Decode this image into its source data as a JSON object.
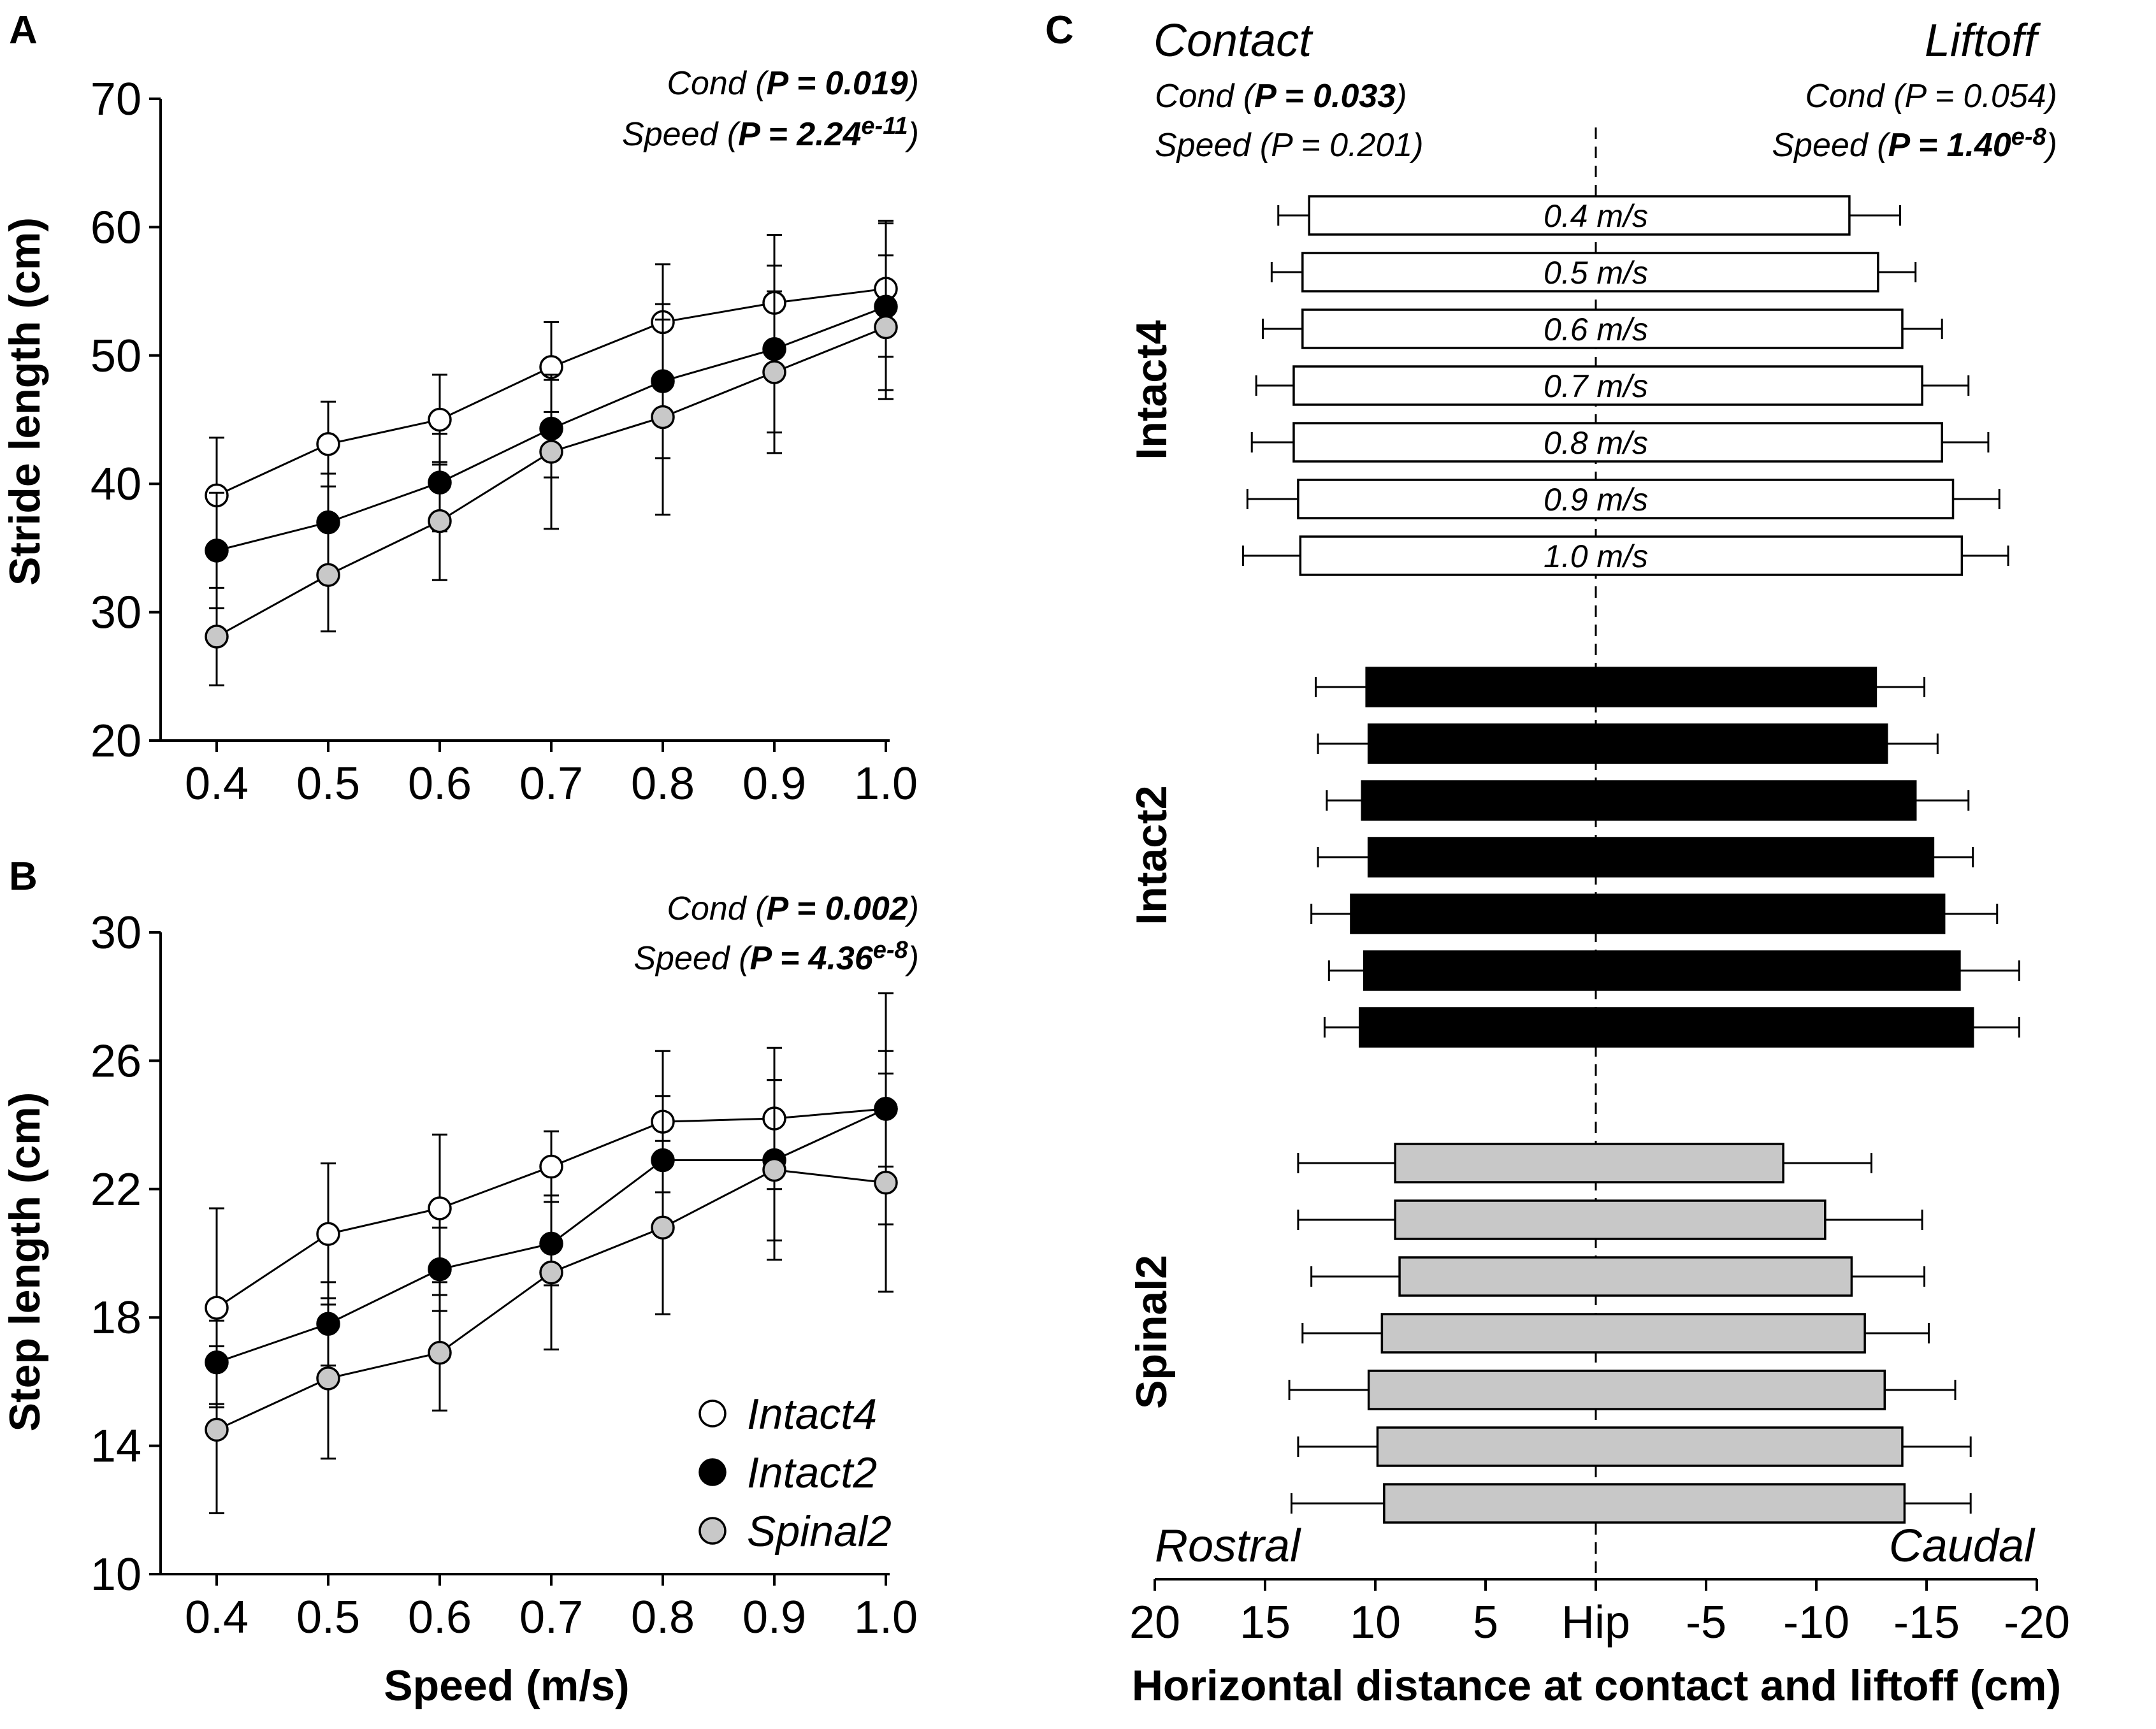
{
  "colors": {
    "Intact4": "#ffffff",
    "Intact2": "#000000",
    "Spinal2": "#c8c8c8",
    "stroke": "#000000"
  },
  "chart_data": [
    {
      "id": "A",
      "panel_label": "A",
      "type": "line",
      "ylabel": "Stride length (cm)",
      "xlabel": "",
      "ylim": [
        20,
        70
      ],
      "yticks": [
        20,
        30,
        40,
        50,
        60,
        70
      ],
      "categories": [
        "0.4",
        "0.5",
        "0.6",
        "0.7",
        "0.8",
        "0.9",
        "1.0"
      ],
      "stats": [
        {
          "name": "Cond",
          "p_text": "P = 0.019",
          "sup": "",
          "bold": true
        },
        {
          "name": "Speed",
          "p_text": "P = 2.24",
          "sup": "e-11",
          "bold": true
        }
      ],
      "series": [
        {
          "name": "Intact4",
          "values": [
            39.1,
            43.1,
            45.0,
            49.1,
            52.6,
            54.1,
            55.2
          ],
          "err": [
            4.5,
            3.3,
            3.5,
            3.5,
            4.5,
            5.3,
            5.3
          ]
        },
        {
          "name": "Intact2",
          "values": [
            34.8,
            37.0,
            40.1,
            44.3,
            48.0,
            50.5,
            53.8
          ],
          "err": [
            4.5,
            3.8,
            3.8,
            3.8,
            6.0,
            6.5,
            6.5
          ]
        },
        {
          "name": "Spinal2",
          "values": [
            28.1,
            32.9,
            37.1,
            42.5,
            45.2,
            48.7,
            52.2
          ],
          "err": [
            3.8,
            4.4,
            4.6,
            6.0,
            7.6,
            6.3,
            5.6
          ]
        }
      ]
    },
    {
      "id": "B",
      "panel_label": "B",
      "type": "line",
      "ylabel": "Step length (cm)",
      "xlabel": "Speed (m/s)",
      "ylim": [
        10,
        30
      ],
      "yticks": [
        10,
        14,
        18,
        22,
        26,
        30
      ],
      "categories": [
        "0.4",
        "0.5",
        "0.6",
        "0.7",
        "0.8",
        "0.9",
        "1.0"
      ],
      "stats": [
        {
          "name": "Cond",
          "p_text": "P = 0.002",
          "sup": "",
          "bold": true
        },
        {
          "name": "Speed",
          "p_text": "P = 4.36",
          "sup": "e-8",
          "bold": true
        }
      ],
      "legend": [
        "Intact4",
        "Intact2",
        "Spinal2"
      ],
      "series": [
        {
          "name": "Intact4",
          "values": [
            18.3,
            20.6,
            21.4,
            22.7,
            24.1,
            24.2,
            24.5
          ],
          "err": [
            3.1,
            2.2,
            2.3,
            1.1,
            2.2,
            2.2,
            1.8
          ]
        },
        {
          "name": "Intact2",
          "values": [
            16.6,
            17.8,
            19.5,
            20.3,
            22.9,
            22.9,
            24.5
          ],
          "err": [
            1.3,
            1.3,
            1.3,
            1.3,
            2.0,
            2.5,
            3.6
          ]
        },
        {
          "name": "Spinal2",
          "values": [
            14.5,
            16.1,
            16.9,
            19.4,
            20.8,
            22.6,
            22.2
          ],
          "err": [
            2.6,
            2.5,
            1.8,
            2.4,
            2.7,
            2.8,
            3.4
          ]
        }
      ]
    },
    {
      "id": "C",
      "panel_label": "C",
      "type": "floating-bar",
      "xlabel": "Horizontal distance at contact and liftoff (cm)",
      "xlim": [
        20,
        -20
      ],
      "xticks": [
        "20",
        "15",
        "10",
        "5",
        "Hip",
        "-5",
        "-10",
        "-15",
        "-20"
      ],
      "contact": {
        "title": "Contact",
        "stats": [
          {
            "name": "Cond",
            "p_text": "P = 0.033",
            "sup": "",
            "bold": true
          },
          {
            "name": "Speed",
            "p_text": "P = 0.201",
            "sup": "",
            "bold": false
          }
        ]
      },
      "liftoff": {
        "title": "Liftoff",
        "stats": [
          {
            "name": "Cond",
            "p_text": "P = 0.054",
            "sup": "",
            "bold": false
          },
          {
            "name": "Speed",
            "p_text": "P = 1.40",
            "sup": "e-8",
            "bold": true
          }
        ]
      },
      "rostral_label": "Rostral",
      "caudal_label": "Caudal",
      "speed_labels": [
        "0.4 m/s",
        "0.5 m/s",
        "0.6 m/s",
        "0.7 m/s",
        "0.8 m/s",
        "0.9 m/s",
        "1.0 m/s"
      ],
      "groups": [
        {
          "name": "Intact4",
          "contact": [
            13.0,
            13.3,
            13.3,
            13.7,
            13.7,
            13.5,
            13.4
          ],
          "contact_err": [
            1.4,
            1.4,
            1.8,
            1.7,
            1.9,
            2.3,
            2.6
          ],
          "liftoff": [
            -11.5,
            -12.8,
            -13.9,
            -14.8,
            -15.7,
            -16.2,
            -16.6
          ],
          "liftoff_err": [
            2.3,
            1.7,
            1.8,
            2.1,
            2.1,
            2.1,
            2.1
          ]
        },
        {
          "name": "Intact2",
          "contact": [
            10.4,
            10.3,
            10.6,
            10.3,
            11.1,
            10.5,
            10.7
          ],
          "contact_err": [
            2.3,
            2.3,
            1.6,
            2.3,
            1.8,
            1.6,
            1.6
          ],
          "liftoff": [
            -12.7,
            -13.2,
            -14.5,
            -15.3,
            -15.8,
            -16.5,
            -17.1
          ],
          "liftoff_err": [
            2.2,
            2.3,
            2.4,
            1.8,
            2.4,
            2.7,
            2.1
          ]
        },
        {
          "name": "Spinal2",
          "contact": [
            9.1,
            9.1,
            8.9,
            9.7,
            10.3,
            9.9,
            9.6
          ],
          "contact_err": [
            4.4,
            4.4,
            4.0,
            3.6,
            3.6,
            3.6,
            4.2
          ],
          "liftoff": [
            -8.5,
            -10.4,
            -11.6,
            -12.2,
            -13.1,
            -13.9,
            -14.0
          ],
          "liftoff_err": [
            4.0,
            4.4,
            3.3,
            2.9,
            3.2,
            3.1,
            3.0
          ]
        }
      ]
    }
  ]
}
